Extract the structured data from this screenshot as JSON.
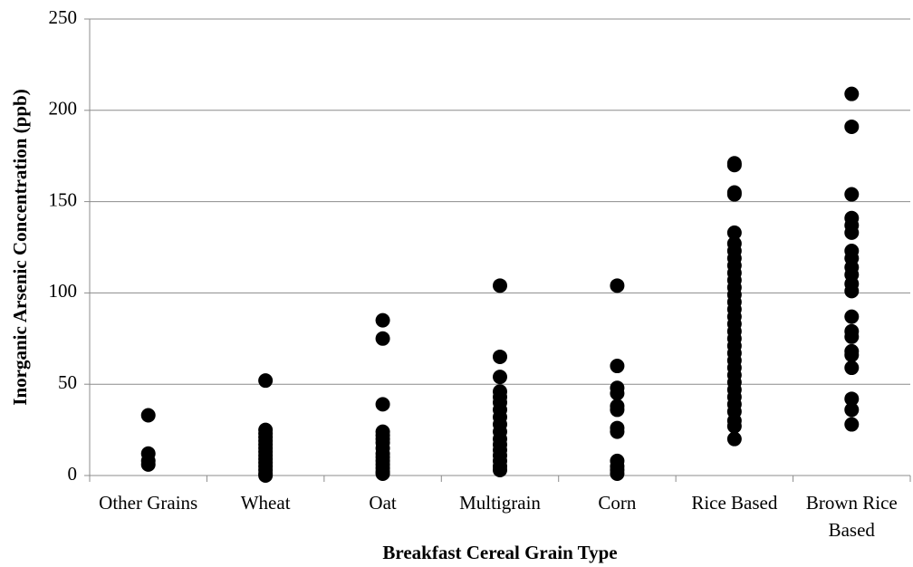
{
  "chart_data": {
    "type": "strip",
    "x_label": "Breakfast Cereal Grain Type",
    "y_label": "Inorganic Arsenic Concentration (ppb)",
    "categories": [
      "Other Grains",
      "Wheat",
      "Oat",
      "Multigrain",
      "Corn",
      "Rice Based",
      "Brown Rice Based"
    ],
    "values": [
      [
        33,
        12,
        8,
        6
      ],
      [
        52,
        25,
        23,
        21,
        19,
        17,
        15,
        13,
        11,
        9,
        7,
        5,
        3,
        1,
        0
      ],
      [
        85,
        75,
        39,
        24,
        22,
        20,
        18,
        15,
        12,
        10,
        8,
        6,
        4,
        2,
        1
      ],
      [
        104,
        65,
        54,
        46,
        43,
        40,
        36,
        32,
        28,
        24,
        20,
        17,
        14,
        11,
        8,
        5,
        3
      ],
      [
        104,
        60,
        48,
        45,
        38,
        36,
        26,
        24,
        8,
        5,
        3,
        1
      ],
      [
        171,
        170,
        155,
        154,
        133,
        127,
        123,
        119,
        115,
        111,
        107,
        103,
        99,
        95,
        91,
        87,
        83,
        79,
        75,
        71,
        67,
        63,
        59,
        55,
        51,
        47,
        43,
        39,
        35,
        30,
        27,
        20
      ],
      [
        209,
        191,
        154,
        141,
        137,
        133,
        123,
        119,
        114,
        110,
        105,
        101,
        87,
        79,
        76,
        68,
        66,
        59,
        42,
        36,
        28
      ]
    ],
    "color": "#000000",
    "ylim": [
      0,
      250
    ],
    "yticks": [
      0,
      50,
      100,
      150,
      200,
      250
    ],
    "grid": true
  }
}
